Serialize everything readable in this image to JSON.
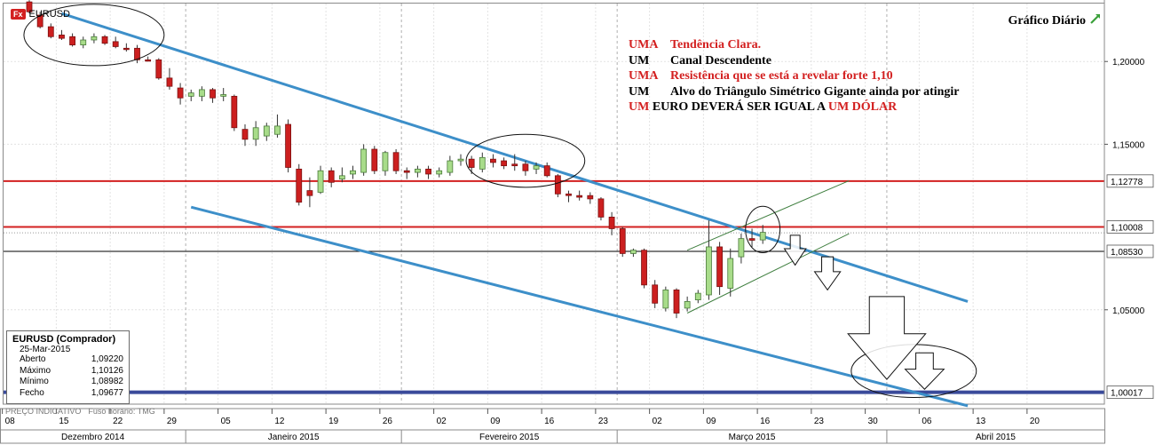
{
  "instrument": {
    "badge": "Fx",
    "symbol": "EURUSD"
  },
  "chart_title": "Gráfico Diário",
  "annotations": [
    {
      "word": "UMA",
      "text": "Tendência Clara.",
      "color": "#d32020"
    },
    {
      "word": "UM",
      "text": "Canal Descendente",
      "color": "#000000"
    },
    {
      "word": "UMA",
      "text": "Resistência que se está a revelar forte 1,10",
      "color": "#d32020"
    },
    {
      "word": "UM",
      "text": "Alvo do Triângulo Simétrico Gigante ainda por atingir",
      "color": "#000000"
    }
  ],
  "annotation_last": {
    "p1": "UM",
    "p2": " EURO DEVERÁ SER IGUAL A ",
    "p3": "UM DÓLAR"
  },
  "info_box": {
    "title": "EURUSD (Comprador)",
    "date": "25-Mar-2015",
    "rows": [
      {
        "label": "Aberto",
        "value": "1,09220"
      },
      {
        "label": "Máximo",
        "value": "1,10126"
      },
      {
        "label": "Mínimo",
        "value": "1,08982"
      },
      {
        "label": "Fecho",
        "value": "1,09677"
      }
    ]
  },
  "footer": {
    "price_type": "PREÇO INDICATIVO",
    "timezone": "Fuso horário: TMG"
  },
  "colors": {
    "bull": "#a8dc8a",
    "bear": "#cc1f1f",
    "channel": "#3d8fc9",
    "resistance": "#d32020",
    "target_line": "#3a4a9a"
  },
  "chart_data": {
    "type": "candlestick",
    "x_tick_labels": [
      "08",
      "15",
      "22",
      "29",
      "05",
      "12",
      "19",
      "26",
      "02",
      "09",
      "16",
      "23",
      "02",
      "09",
      "16",
      "23",
      "30",
      "06",
      "13",
      "20"
    ],
    "months": [
      "Dezembro 2014",
      "Janeiro 2015",
      "Fevereiro 2015",
      "Março 2015",
      "Abril 2015"
    ],
    "y_tick_labels": [
      "1,20000",
      "1,15000",
      "1,05000"
    ],
    "y_ticks": [
      1.2,
      1.15,
      1.05
    ],
    "ylim": [
      0.993,
      1.235
    ],
    "price_labels": [
      {
        "value": 1.12778,
        "label": "1,12778"
      },
      {
        "value": 1.10008,
        "label": "1,10008"
      },
      {
        "value": 1.0853,
        "label": "1,08530"
      },
      {
        "value": 1.00017,
        "label": "1,00017"
      }
    ],
    "horizontal_lines": [
      {
        "value": 1.12778,
        "color": "red"
      },
      {
        "value": 1.10008,
        "color": "red"
      },
      {
        "value": 1.0853,
        "color": "black"
      },
      {
        "value": 1.00017,
        "color": "navy"
      }
    ],
    "candles": [
      {
        "o": 1.236,
        "h": 1.237,
        "l": 1.229,
        "c": 1.23
      },
      {
        "o": 1.228,
        "h": 1.23,
        "l": 1.22,
        "c": 1.221
      },
      {
        "o": 1.221,
        "h": 1.223,
        "l": 1.214,
        "c": 1.215
      },
      {
        "o": 1.216,
        "h": 1.219,
        "l": 1.213,
        "c": 1.214
      },
      {
        "o": 1.215,
        "h": 1.217,
        "l": 1.209,
        "c": 1.21
      },
      {
        "o": 1.21,
        "h": 1.215,
        "l": 1.208,
        "c": 1.213
      },
      {
        "o": 1.213,
        "h": 1.217,
        "l": 1.211,
        "c": 1.215
      },
      {
        "o": 1.215,
        "h": 1.216,
        "l": 1.21,
        "c": 1.211
      },
      {
        "o": 1.212,
        "h": 1.215,
        "l": 1.208,
        "c": 1.209
      },
      {
        "o": 1.208,
        "h": 1.211,
        "l": 1.206,
        "c": 1.2075
      },
      {
        "o": 1.208,
        "h": 1.21,
        "l": 1.199,
        "c": 1.201
      },
      {
        "o": 1.201,
        "h": 1.203,
        "l": 1.2,
        "c": 1.2005
      },
      {
        "o": 1.201,
        "h": 1.202,
        "l": 1.189,
        "c": 1.19
      },
      {
        "o": 1.19,
        "h": 1.196,
        "l": 1.183,
        "c": 1.185
      },
      {
        "o": 1.184,
        "h": 1.187,
        "l": 1.174,
        "c": 1.178
      },
      {
        "o": 1.179,
        "h": 1.183,
        "l": 1.176,
        "c": 1.181
      },
      {
        "o": 1.179,
        "h": 1.185,
        "l": 1.176,
        "c": 1.183
      },
      {
        "o": 1.183,
        "h": 1.184,
        "l": 1.175,
        "c": 1.178
      },
      {
        "o": 1.179,
        "h": 1.184,
        "l": 1.176,
        "c": 1.18
      },
      {
        "o": 1.179,
        "h": 1.18,
        "l": 1.158,
        "c": 1.16
      },
      {
        "o": 1.159,
        "h": 1.162,
        "l": 1.149,
        "c": 1.153
      },
      {
        "o": 1.153,
        "h": 1.164,
        "l": 1.149,
        "c": 1.16
      },
      {
        "o": 1.155,
        "h": 1.163,
        "l": 1.152,
        "c": 1.161
      },
      {
        "o": 1.156,
        "h": 1.168,
        "l": 1.154,
        "c": 1.161
      },
      {
        "o": 1.162,
        "h": 1.165,
        "l": 1.133,
        "c": 1.136
      },
      {
        "o": 1.135,
        "h": 1.138,
        "l": 1.113,
        "c": 1.115
      },
      {
        "o": 1.122,
        "h": 1.13,
        "l": 1.112,
        "c": 1.119
      },
      {
        "o": 1.121,
        "h": 1.137,
        "l": 1.12,
        "c": 1.134
      },
      {
        "o": 1.134,
        "h": 1.136,
        "l": 1.124,
        "c": 1.127
      },
      {
        "o": 1.129,
        "h": 1.136,
        "l": 1.127,
        "c": 1.131
      },
      {
        "o": 1.132,
        "h": 1.137,
        "l": 1.129,
        "c": 1.134
      },
      {
        "o": 1.133,
        "h": 1.15,
        "l": 1.131,
        "c": 1.147
      },
      {
        "o": 1.147,
        "h": 1.149,
        "l": 1.132,
        "c": 1.134
      },
      {
        "o": 1.134,
        "h": 1.146,
        "l": 1.131,
        "c": 1.145
      },
      {
        "o": 1.145,
        "h": 1.147,
        "l": 1.132,
        "c": 1.134
      },
      {
        "o": 1.134,
        "h": 1.136,
        "l": 1.129,
        "c": 1.133
      },
      {
        "o": 1.133,
        "h": 1.137,
        "l": 1.13,
        "c": 1.135
      },
      {
        "o": 1.135,
        "h": 1.137,
        "l": 1.129,
        "c": 1.132
      },
      {
        "o": 1.132,
        "h": 1.136,
        "l": 1.13,
        "c": 1.134
      },
      {
        "o": 1.133,
        "h": 1.143,
        "l": 1.131,
        "c": 1.14
      },
      {
        "o": 1.14,
        "h": 1.144,
        "l": 1.137,
        "c": 1.141
      },
      {
        "o": 1.141,
        "h": 1.143,
        "l": 1.132,
        "c": 1.136
      },
      {
        "o": 1.135,
        "h": 1.145,
        "l": 1.133,
        "c": 1.142
      },
      {
        "o": 1.141,
        "h": 1.144,
        "l": 1.136,
        "c": 1.139
      },
      {
        "o": 1.14,
        "h": 1.142,
        "l": 1.135,
        "c": 1.137
      },
      {
        "o": 1.138,
        "h": 1.144,
        "l": 1.134,
        "c": 1.137
      },
      {
        "o": 1.138,
        "h": 1.14,
        "l": 1.131,
        "c": 1.134
      },
      {
        "o": 1.135,
        "h": 1.139,
        "l": 1.132,
        "c": 1.137
      },
      {
        "o": 1.137,
        "h": 1.139,
        "l": 1.13,
        "c": 1.131
      },
      {
        "o": 1.131,
        "h": 1.132,
        "l": 1.118,
        "c": 1.12
      },
      {
        "o": 1.12,
        "h": 1.122,
        "l": 1.115,
        "c": 1.119
      },
      {
        "o": 1.119,
        "h": 1.122,
        "l": 1.116,
        "c": 1.118
      },
      {
        "o": 1.119,
        "h": 1.121,
        "l": 1.114,
        "c": 1.117
      },
      {
        "o": 1.117,
        "h": 1.118,
        "l": 1.104,
        "c": 1.106
      },
      {
        "o": 1.106,
        "h": 1.109,
        "l": 1.095,
        "c": 1.099
      },
      {
        "o": 1.099,
        "h": 1.1,
        "l": 1.082,
        "c": 1.084
      },
      {
        "o": 1.084,
        "h": 1.087,
        "l": 1.082,
        "c": 1.086
      },
      {
        "o": 1.086,
        "h": 1.087,
        "l": 1.063,
        "c": 1.065
      },
      {
        "o": 1.065,
        "h": 1.068,
        "l": 1.051,
        "c": 1.054
      },
      {
        "o": 1.051,
        "h": 1.064,
        "l": 1.049,
        "c": 1.062
      },
      {
        "o": 1.062,
        "h": 1.063,
        "l": 1.045,
        "c": 1.048
      },
      {
        "o": 1.051,
        "h": 1.058,
        "l": 1.049,
        "c": 1.055
      },
      {
        "o": 1.056,
        "h": 1.062,
        "l": 1.054,
        "c": 1.06
      },
      {
        "o": 1.059,
        "h": 1.104,
        "l": 1.056,
        "c": 1.088
      },
      {
        "o": 1.088,
        "h": 1.091,
        "l": 1.059,
        "c": 1.064
      },
      {
        "o": 1.063,
        "h": 1.087,
        "l": 1.058,
        "c": 1.081
      },
      {
        "o": 1.082,
        "h": 1.096,
        "l": 1.078,
        "c": 1.093
      },
      {
        "o": 1.093,
        "h": 1.099,
        "l": 1.088,
        "c": 1.092
      },
      {
        "o": 1.0922,
        "h": 1.10126,
        "l": 1.08982,
        "c": 1.09677
      }
    ],
    "channel": [
      {
        "x": [
          3,
          87
        ],
        "y": [
          1.229,
          1.055
        ]
      },
      {
        "x": [
          15,
          87
        ],
        "y": [
          1.112,
          0.992
        ]
      }
    ],
    "triangle_lines": [
      {
        "x": [
          61,
          76
        ],
        "y": [
          1.048,
          1.096
        ]
      },
      {
        "x": [
          61,
          76
        ],
        "y": [
          1.086,
          1.128
        ]
      }
    ],
    "ellipses": [
      {
        "cx": 6,
        "cy": 1.216,
        "rx": 6.5,
        "ry": 0.0185
      },
      {
        "cx": 46,
        "cy": 1.14,
        "rx": 5.5,
        "ry": 0.016
      },
      {
        "cx": 68,
        "cy": 1.0985,
        "rx": 1.6,
        "ry": 0.014
      },
      {
        "cx": 82,
        "cy": 1.013,
        "rx": 5.8,
        "ry": 0.016
      }
    ],
    "arrows": [
      {
        "x": 71,
        "top": 1.095,
        "bottom": 1.077,
        "half_width": 1.0
      },
      {
        "x": 74,
        "top": 1.082,
        "bottom": 1.062,
        "half_width": 1.2
      },
      {
        "x": 79.5,
        "top": 1.058,
        "bottom": 1.008,
        "half_width": 3.6
      },
      {
        "x": 83,
        "top": 1.024,
        "bottom": 1.002,
        "half_width": 1.8
      }
    ]
  }
}
